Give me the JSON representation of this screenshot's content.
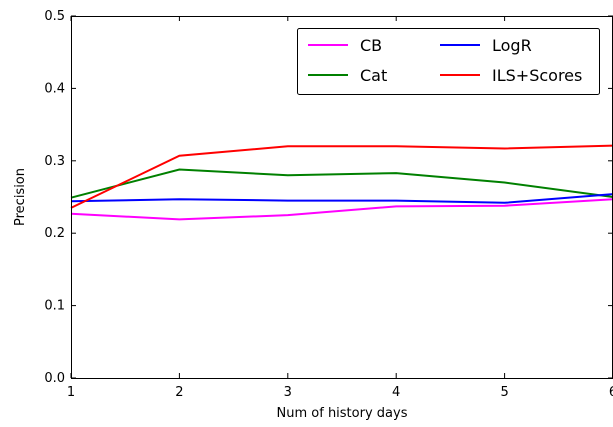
{
  "chart_data": {
    "type": "line",
    "title": "",
    "xlabel": "Num of history days",
    "ylabel": "Precision",
    "x": [
      1,
      2,
      3,
      4,
      5,
      6
    ],
    "xlim": [
      1,
      6
    ],
    "ylim": [
      0.0,
      0.5
    ],
    "x_ticks": [
      "1",
      "2",
      "3",
      "4",
      "5",
      "6"
    ],
    "y_ticks": [
      "0.0",
      "0.1",
      "0.2",
      "0.3",
      "0.4",
      "0.5"
    ],
    "grid": false,
    "legend_position": "top-right",
    "series": [
      {
        "name": "CB",
        "color": "#ff00ff",
        "values": [
          0.227,
          0.219,
          0.225,
          0.237,
          0.238,
          0.247
        ]
      },
      {
        "name": "Cat",
        "color": "#008000",
        "values": [
          0.249,
          0.288,
          0.28,
          0.283,
          0.27,
          0.25
        ]
      },
      {
        "name": "LogR",
        "color": "#0000ff",
        "values": [
          0.244,
          0.247,
          0.245,
          0.245,
          0.242,
          0.254
        ]
      },
      {
        "name": "ILS+Scores",
        "color": "#ff0000",
        "values": [
          0.235,
          0.307,
          0.32,
          0.32,
          0.317,
          0.321
        ]
      }
    ]
  }
}
